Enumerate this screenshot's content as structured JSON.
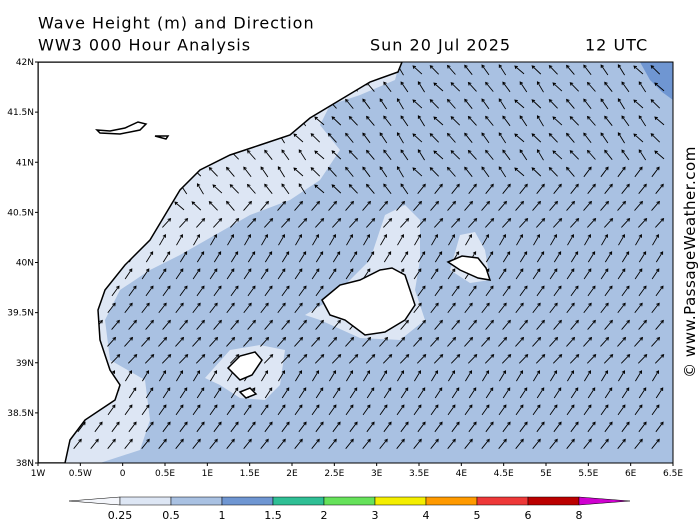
{
  "header": {
    "title": "Wave Height (m) and Direction",
    "subtitle": "WW3 000 Hour Analysis",
    "date": "Sun 20 Jul 2025",
    "time": "12 UTC"
  },
  "map": {
    "lon_range": [
      -1,
      6.5
    ],
    "lat_range": [
      38,
      42
    ],
    "lon_ticks": [
      {
        "value": -1,
        "label": "1W"
      },
      {
        "value": -0.5,
        "label": "0.5W"
      },
      0,
      {
        "value": 0.5,
        "label": "0.5E"
      },
      {
        "value": 1,
        "label": "1E"
      },
      {
        "value": 1.5,
        "label": "1.5E"
      },
      {
        "value": 2,
        "label": "2E"
      },
      {
        "value": 2.5,
        "label": "2.5E"
      },
      {
        "value": 3,
        "label": "3E"
      },
      {
        "value": 3.5,
        "label": "3.5E"
      },
      {
        "value": 4,
        "label": "4E"
      },
      {
        "value": 4.5,
        "label": "4.5E"
      },
      {
        "value": 5,
        "label": "5E"
      },
      {
        "value": 5.5,
        "label": "5.5E"
      },
      {
        "value": 6,
        "label": "6E"
      },
      {
        "value": 6.5,
        "label": "6.5E"
      }
    ],
    "lat_ticks": [
      {
        "value": 38,
        "label": "38N"
      },
      {
        "value": 38.5,
        "label": "38.5N"
      },
      {
        "value": 39,
        "label": "39N"
      },
      {
        "value": 39.5,
        "label": "39.5N"
      },
      {
        "value": 40,
        "label": "40N"
      },
      {
        "value": 40.5,
        "label": "40.5N"
      },
      {
        "value": 41,
        "label": "41N"
      },
      {
        "value": 41.5,
        "label": "41.5N"
      },
      {
        "value": 42,
        "label": "42N"
      }
    ]
  },
  "colorbar": {
    "levels": [
      0.25,
      0.5,
      1,
      1.5,
      2,
      3,
      4,
      5,
      6,
      8
    ],
    "colors": [
      "#f4f6fb",
      "#dde6f4",
      "#a9c1e2",
      "#6f96d2",
      "#2fbf95",
      "#66e25a",
      "#f4ee00",
      "#ff9a00",
      "#ee3838",
      "#bb0000",
      "#d000d0"
    ]
  },
  "watermark": "© www.PassageWeather.com"
}
